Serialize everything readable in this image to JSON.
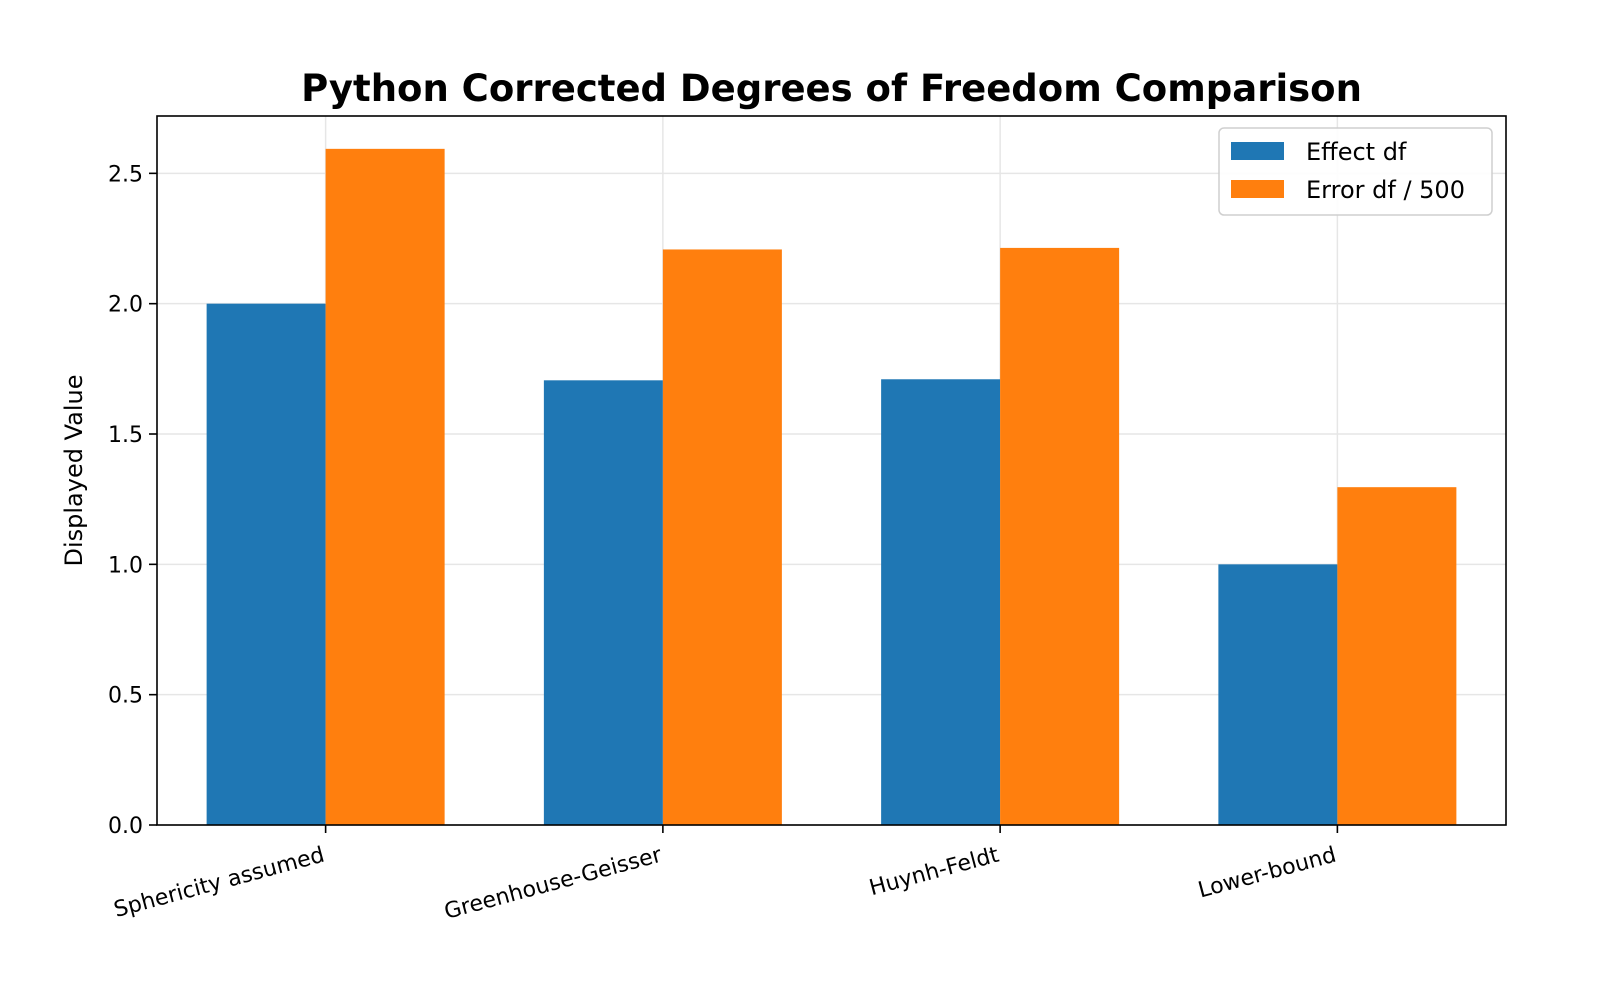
{
  "chart_data": {
    "type": "bar",
    "title": "Python Corrected Degrees of Freedom Comparison",
    "xlabel": "",
    "ylabel": "Displayed Value",
    "categories": [
      "Sphericity assumed",
      "Greenhouse-Geisser",
      "Huynh-Feldt",
      "Lower-bound"
    ],
    "series": [
      {
        "name": "Effect df",
        "values": [
          2.0,
          1.706,
          1.71,
          1.0
        ],
        "color": "#1f77b4"
      },
      {
        "name": "Error df / 500",
        "values": [
          2.594,
          2.208,
          2.214,
          1.296
        ],
        "color": "#ff7f0e"
      }
    ],
    "ylim": [
      0,
      2.72
    ],
    "yticks": [
      "0.0",
      "0.5",
      "1.0",
      "1.5",
      "2.0",
      "2.5"
    ],
    "grid": true,
    "legend_position": "top-right"
  }
}
